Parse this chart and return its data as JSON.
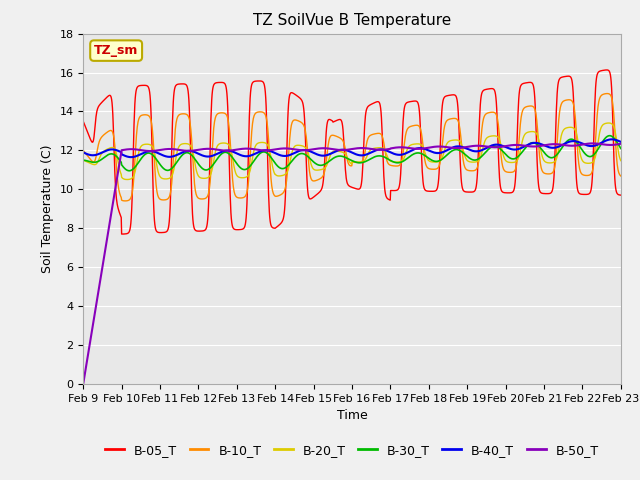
{
  "title": "TZ SoilVue B Temperature",
  "xlabel": "Time",
  "ylabel": "Soil Temperature (C)",
  "ylim": [
    0,
    18
  ],
  "yticks": [
    0,
    2,
    4,
    6,
    8,
    10,
    12,
    14,
    16,
    18
  ],
  "plot_bg_color": "#e8e8e8",
  "annotation_label": "TZ_sm",
  "annotation_bg": "#ffffcc",
  "annotation_border": "#bbaa00",
  "annotation_text_color": "#cc0000",
  "legend_entries": [
    "B-05_T",
    "B-10_T",
    "B-20_T",
    "B-30_T",
    "B-40_T",
    "B-50_T"
  ],
  "line_colors": [
    "#ff0000",
    "#ff8c00",
    "#ddcc00",
    "#00bb00",
    "#0000ee",
    "#8800bb"
  ],
  "xtick_labels": [
    "Feb 9",
    "Feb 10",
    "Feb 11",
    "Feb 12",
    "Feb 13",
    "Feb 14",
    "Feb 15",
    "Feb 16",
    "Feb 17",
    "Feb 18",
    "Feb 19",
    "Feb 20",
    "Feb 21",
    "Feb 22",
    "Feb 23"
  ],
  "title_fontsize": 11,
  "axis_label_fontsize": 9,
  "tick_fontsize": 8,
  "legend_fontsize": 9
}
